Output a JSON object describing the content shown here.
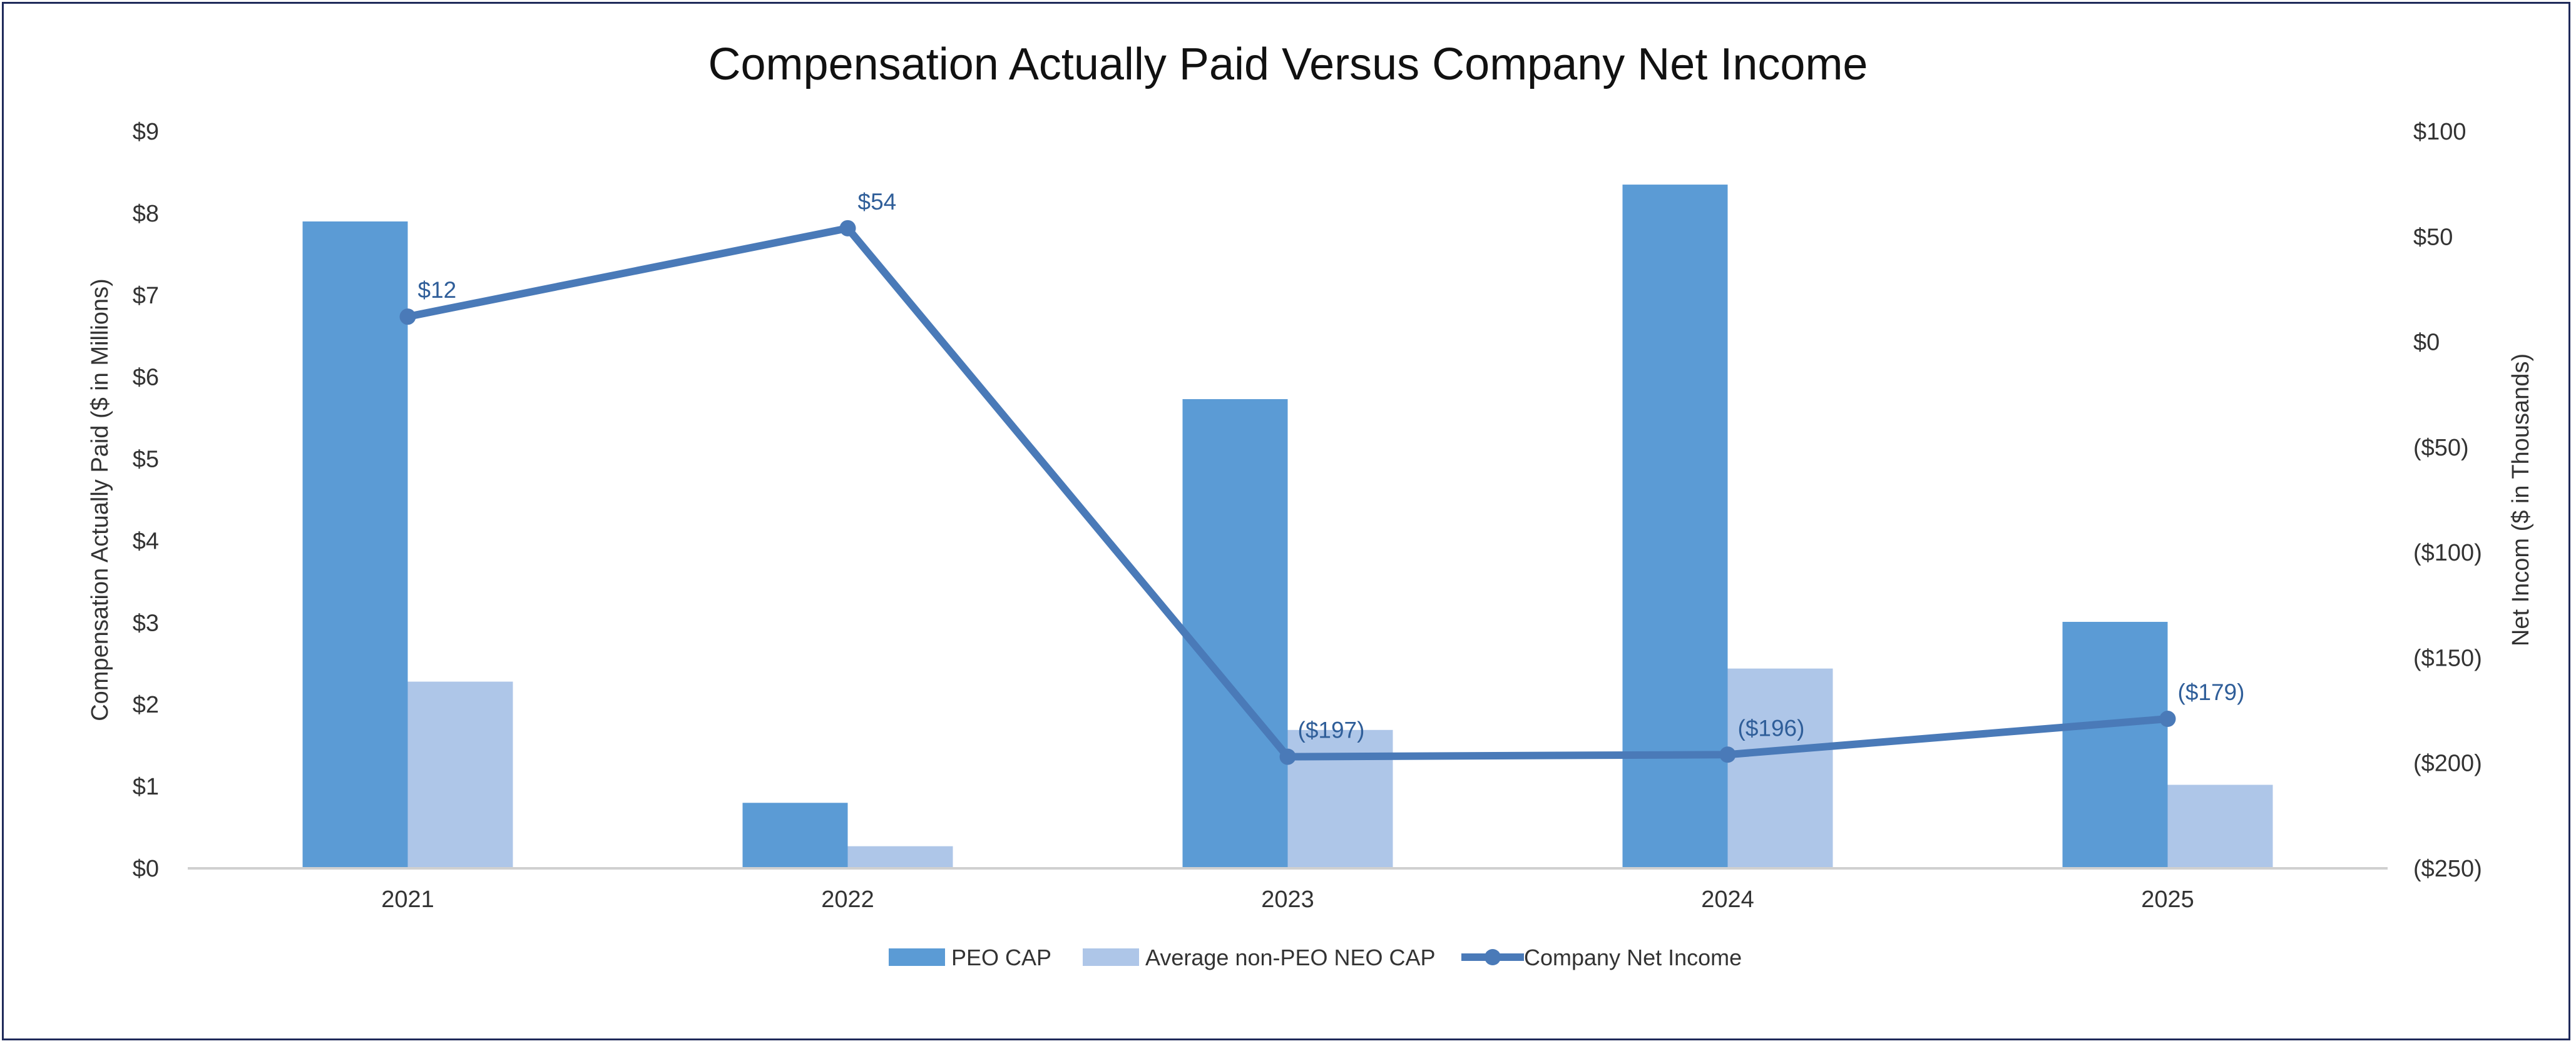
{
  "chart_data": {
    "type": "bar",
    "title": "Compensation Actually Paid Versus Company Net Income",
    "categories": [
      "2021",
      "2022",
      "2023",
      "2024",
      "2025"
    ],
    "series": [
      {
        "name": "PEO CAP",
        "type": "bar",
        "axis": "left",
        "values": [
          7.9,
          0.8,
          5.73,
          8.35,
          3.01
        ],
        "color": "#5b9bd5"
      },
      {
        "name": "Average non-PEO NEO CAP",
        "type": "bar",
        "axis": "left",
        "values": [
          2.28,
          0.27,
          1.69,
          2.44,
          1.02
        ],
        "color": "#aec6e8"
      },
      {
        "name": "Company Net Income",
        "type": "line",
        "axis": "right",
        "values": [
          12,
          54,
          -197,
          -196,
          -179
        ],
        "data_labels": [
          "$12",
          "$54",
          "($197)",
          "($196)",
          "($179)"
        ],
        "color": "#4a7ab8"
      }
    ],
    "ylabel": "Compensation Actually Paid ($ in Millions)",
    "y2label": "Net Incom ($ in Thousands)",
    "ylim": [
      0,
      9
    ],
    "y2lim": [
      -250,
      100
    ],
    "yticks": [
      "$0",
      "$1",
      "$2",
      "$3",
      "$4",
      "$5",
      "$6",
      "$7",
      "$8",
      "$9"
    ],
    "y2ticks": [
      "($250)",
      "($200)",
      "($150)",
      "($100)",
      "($50)",
      "$0",
      "$50",
      "$100"
    ],
    "grid": false,
    "legend_position": "bottom"
  }
}
